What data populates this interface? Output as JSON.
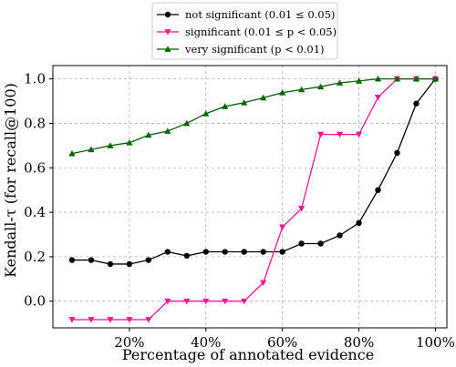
{
  "chart_data": {
    "type": "line",
    "title": "",
    "xlabel": "Percentage of annotated evidence",
    "ylabel": "Kendall-τ (for recall@100)",
    "x": [
      5,
      10,
      15,
      20,
      25,
      30,
      35,
      40,
      45,
      50,
      55,
      60,
      65,
      70,
      75,
      80,
      85,
      90,
      95,
      100
    ],
    "xlim": [
      0,
      103
    ],
    "ylim": [
      -0.12,
      1.06
    ],
    "x_ticks": [
      20,
      40,
      60,
      80,
      100
    ],
    "x_tick_labels": [
      "20%",
      "40%",
      "60%",
      "80%",
      "100%"
    ],
    "y_ticks": [
      0.0,
      0.2,
      0.4,
      0.6,
      0.8,
      1.0
    ],
    "y_tick_labels": [
      "0.0",
      "0.2",
      "0.4",
      "0.6",
      "0.8",
      "1.0"
    ],
    "grid": true,
    "legend_position": "top-center, above plot",
    "series": [
      {
        "name": "not significant (0.01 ≤ 0.05)",
        "color": "#000000",
        "marker": "circle",
        "values": [
          0.185,
          0.185,
          0.167,
          0.167,
          0.185,
          0.222,
          0.204,
          0.222,
          0.222,
          0.222,
          0.222,
          0.222,
          0.259,
          0.259,
          0.296,
          0.352,
          0.5,
          0.667,
          0.889,
          1.0
        ]
      },
      {
        "name": "significant (0.01 ≤ p < 0.05)",
        "color": "#ff1493",
        "marker": "triangle-down",
        "values": [
          -0.083,
          -0.083,
          -0.083,
          -0.083,
          -0.083,
          0.0,
          0.0,
          0.0,
          0.0,
          0.0,
          0.083,
          0.333,
          0.417,
          0.75,
          0.75,
          0.75,
          0.917,
          1.0,
          1.0,
          1.0
        ]
      },
      {
        "name": "very significant (p < 0.01)",
        "color": "#006400",
        "marker": "triangle-up",
        "values": [
          0.664,
          0.682,
          0.7,
          0.713,
          0.747,
          0.765,
          0.8,
          0.844,
          0.876,
          0.893,
          0.915,
          0.938,
          0.952,
          0.965,
          0.982,
          0.991,
          1.0,
          1.0,
          1.0,
          1.0
        ]
      }
    ]
  }
}
